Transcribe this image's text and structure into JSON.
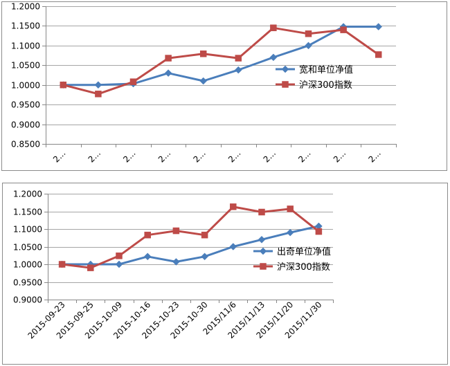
{
  "chart_data": [
    {
      "type": "line",
      "x": [
        "2...",
        "2...",
        "2...",
        "2...",
        "2...",
        "2...",
        "2...",
        "2...",
        "2...",
        "2..."
      ],
      "ylim": [
        0.85,
        1.2
      ],
      "yticks": [
        "0.8500",
        "0.9000",
        "0.9500",
        "1.0000",
        "1.0500",
        "1.1000",
        "1.1500",
        "1.2000"
      ],
      "grid": true,
      "legend_position": "right",
      "series": [
        {
          "name": "宽和单位净值",
          "color": "#4a7ebb",
          "marker": "diamond",
          "values": [
            1.0,
            1.0,
            1.003,
            1.03,
            1.01,
            1.038,
            1.07,
            1.1,
            1.148,
            1.148
          ]
        },
        {
          "name": "沪深300指数",
          "color": "#be4b48",
          "marker": "square",
          "values": [
            1.0,
            0.977,
            1.008,
            1.068,
            1.079,
            1.068,
            1.145,
            1.13,
            1.14,
            1.077
          ]
        }
      ]
    },
    {
      "type": "line",
      "x": [
        "2015-09-23",
        "2015-09-25",
        "2015-10-09",
        "2015-10-16",
        "2015-10-23",
        "2015-10-30",
        "2015/11/6",
        "2015/11/13",
        "2015/11/20",
        "2015/11/30"
      ],
      "ylim": [
        0.9,
        1.2
      ],
      "yticks": [
        "0.9000",
        "0.9500",
        "1.0000",
        "1.0500",
        "1.1000",
        "1.1500",
        "1.2000"
      ],
      "grid": true,
      "legend_position": "right",
      "series": [
        {
          "name": "出奇单位净值",
          "color": "#4a7ebb",
          "marker": "diamond",
          "values": [
            1.0,
            1.0,
            1.0,
            1.022,
            1.007,
            1.022,
            1.05,
            1.07,
            1.09,
            1.108
          ]
        },
        {
          "name": "沪深300指数",
          "color": "#be4b48",
          "marker": "square",
          "values": [
            1.0,
            0.99,
            1.024,
            1.083,
            1.095,
            1.083,
            1.163,
            1.148,
            1.157,
            1.093
          ]
        }
      ]
    }
  ]
}
